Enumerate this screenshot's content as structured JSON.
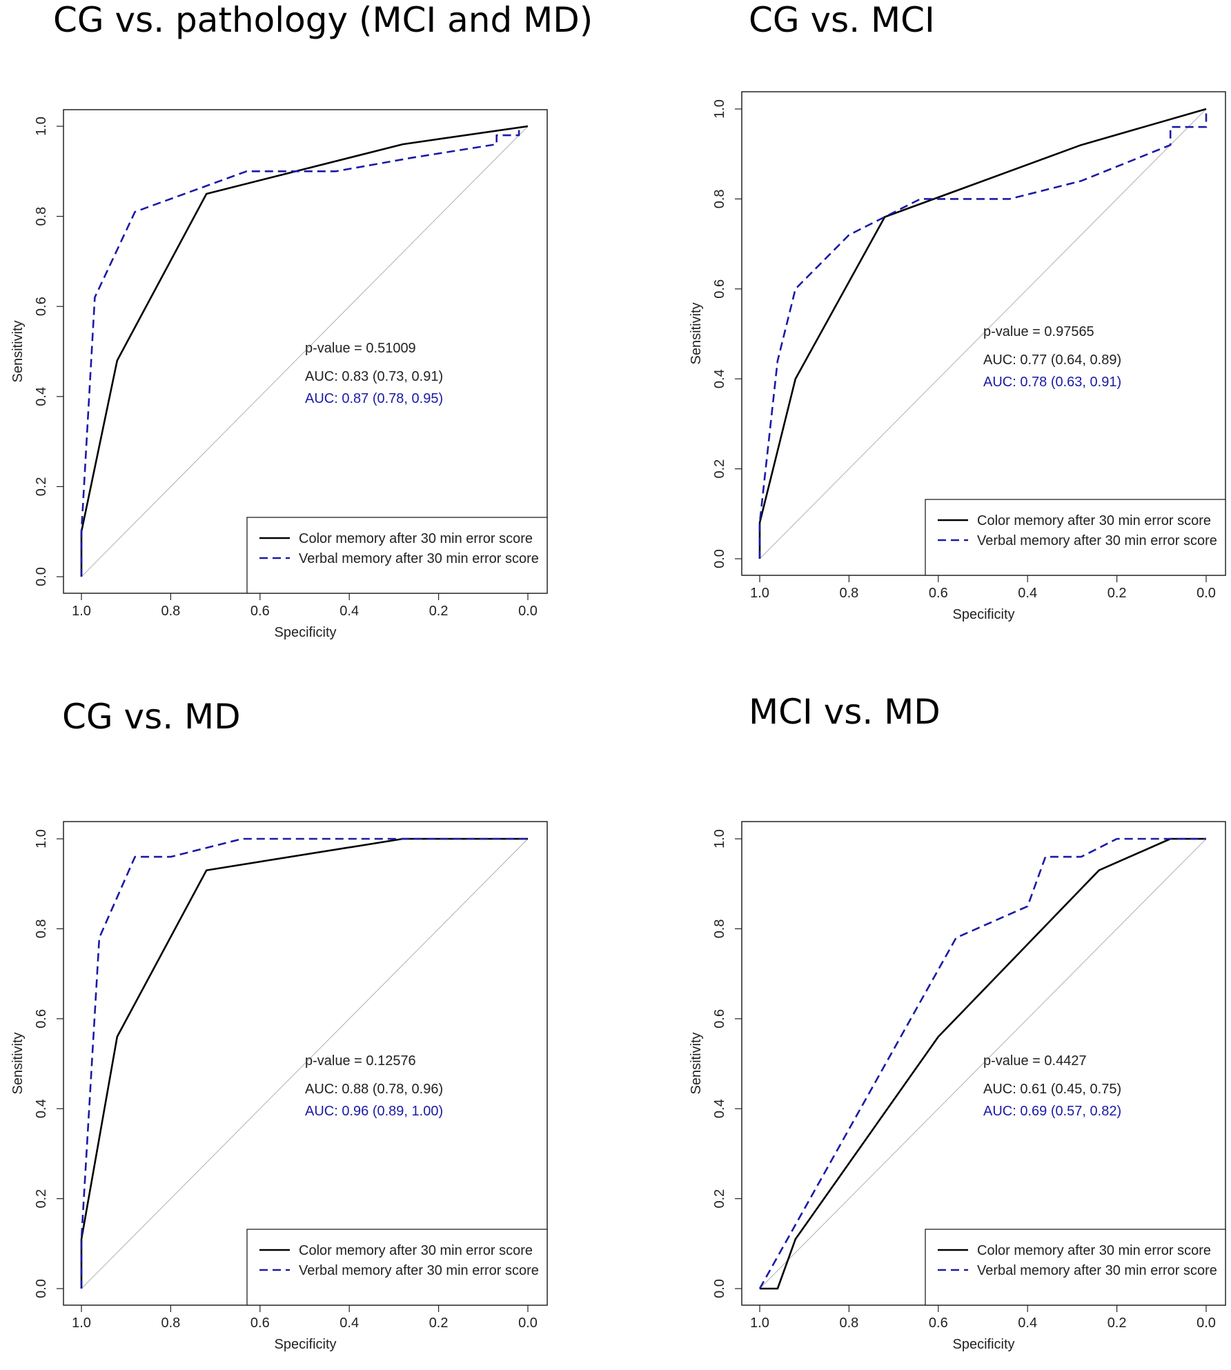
{
  "colors": {
    "color_memory": "#000000",
    "verbal_memory": "#1a1aa6",
    "reference_line": "#b0b0b0",
    "text": "#222222"
  },
  "chart_data": [
    {
      "type": "line",
      "title": "CG vs. pathology (MCI and MD)",
      "xlabel": "Specificity",
      "ylabel": "Sensitivity",
      "xlim": [
        1.0,
        0.0
      ],
      "ylim": [
        0.0,
        1.0
      ],
      "x_ticks": [
        "1.0",
        "0.8",
        "0.6",
        "0.4",
        "0.2",
        "0.0"
      ],
      "y_ticks": [
        "0.0",
        "0.2",
        "0.4",
        "0.6",
        "0.8",
        "1.0"
      ],
      "pvalue_text": "p-value = 0.51009",
      "auc_color_text": "AUC: 0.83 (0.73, 0.91)",
      "auc_verbal_text": "AUC: 0.87 (0.78, 0.95)",
      "legend_position": "bottom-right",
      "series": [
        {
          "name": "Color memory after 30 min error score",
          "style": "solid",
          "x": [
            1.0,
            1.0,
            0.92,
            0.72,
            0.28,
            0.0
          ],
          "y": [
            0.0,
            0.1,
            0.48,
            0.85,
            0.96,
            1.0
          ]
        },
        {
          "name": "Verbal memory after 30 min error score",
          "style": "dashed",
          "x": [
            1.0,
            1.0,
            0.97,
            0.88,
            0.63,
            0.43,
            0.26,
            0.07,
            0.07,
            0.02,
            0.02
          ],
          "y": [
            0.0,
            0.1,
            0.62,
            0.81,
            0.9,
            0.9,
            0.93,
            0.96,
            0.98,
            0.98,
            1.0
          ]
        }
      ]
    },
    {
      "type": "line",
      "title": "CG vs. MCI",
      "xlabel": "Specificity",
      "ylabel": "Sensitivity",
      "xlim": [
        1.0,
        0.0
      ],
      "ylim": [
        0.0,
        1.0
      ],
      "x_ticks": [
        "1.0",
        "0.8",
        "0.6",
        "0.4",
        "0.2",
        "0.0"
      ],
      "y_ticks": [
        "0.0",
        "0.2",
        "0.4",
        "0.6",
        "0.8",
        "1.0"
      ],
      "pvalue_text": "p-value = 0.97565",
      "auc_color_text": "AUC: 0.77 (0.64, 0.89)",
      "auc_verbal_text": "AUC: 0.78 (0.63, 0.91)",
      "legend_position": "bottom-right",
      "series": [
        {
          "name": "Color memory after 30 min error score",
          "style": "solid",
          "x": [
            1.0,
            1.0,
            0.92,
            0.72,
            0.28,
            0.0
          ],
          "y": [
            0.0,
            0.08,
            0.4,
            0.76,
            0.92,
            1.0
          ]
        },
        {
          "name": "Verbal memory after 30 min error score",
          "style": "dashed",
          "x": [
            1.0,
            1.0,
            0.96,
            0.92,
            0.8,
            0.64,
            0.44,
            0.28,
            0.08,
            0.08,
            0.0,
            0.0
          ],
          "y": [
            0.0,
            0.08,
            0.44,
            0.6,
            0.72,
            0.8,
            0.8,
            0.84,
            0.92,
            0.96,
            0.96,
            1.0
          ]
        }
      ]
    },
    {
      "type": "line",
      "title": "CG vs. MD",
      "xlabel": "Specificity",
      "ylabel": "Sensitivity",
      "xlim": [
        1.0,
        0.0
      ],
      "ylim": [
        0.0,
        1.0
      ],
      "x_ticks": [
        "1.0",
        "0.8",
        "0.6",
        "0.4",
        "0.2",
        "0.0"
      ],
      "y_ticks": [
        "0.0",
        "0.2",
        "0.4",
        "0.6",
        "0.8",
        "1.0"
      ],
      "pvalue_text": "p-value = 0.12576",
      "auc_color_text": "AUC: 0.88 (0.78, 0.96)",
      "auc_verbal_text": "AUC: 0.96 (0.89, 1.00)",
      "legend_position": "bottom-right",
      "series": [
        {
          "name": "Color memory after 30 min error score",
          "style": "solid",
          "x": [
            1.0,
            1.0,
            0.92,
            0.72,
            0.28,
            0.0
          ],
          "y": [
            0.0,
            0.11,
            0.56,
            0.93,
            1.0,
            1.0
          ]
        },
        {
          "name": "Verbal memory after 30 min error score",
          "style": "dashed",
          "x": [
            1.0,
            1.0,
            0.96,
            0.88,
            0.8,
            0.64,
            0.28,
            0.0
          ],
          "y": [
            0.0,
            0.11,
            0.78,
            0.96,
            0.96,
            1.0,
            1.0,
            1.0
          ]
        }
      ]
    },
    {
      "type": "line",
      "title": "MCI vs. MD",
      "xlabel": "Specificity",
      "ylabel": "Sensitivity",
      "xlim": [
        1.0,
        0.0
      ],
      "ylim": [
        0.0,
        1.0
      ],
      "x_ticks": [
        "1.0",
        "0.8",
        "0.6",
        "0.4",
        "0.2",
        "0.0"
      ],
      "y_ticks": [
        "0.0",
        "0.2",
        "0.4",
        "0.6",
        "0.8",
        "1.0"
      ],
      "pvalue_text": "p-value = 0.4427",
      "auc_color_text": "AUC: 0.61 (0.45, 0.75)",
      "auc_verbal_text": "AUC: 0.69 (0.57, 0.82)",
      "legend_position": "bottom-right",
      "series": [
        {
          "name": "Color memory after 30 min error score",
          "style": "solid",
          "x": [
            1.0,
            0.96,
            0.92,
            0.6,
            0.24,
            0.08,
            0.0
          ],
          "y": [
            0.0,
            0.0,
            0.11,
            0.56,
            0.93,
            1.0,
            1.0
          ]
        },
        {
          "name": "Verbal memory after 30 min error score",
          "style": "dashed",
          "x": [
            1.0,
            0.56,
            0.4,
            0.36,
            0.28,
            0.2,
            0.0
          ],
          "y": [
            0.0,
            0.78,
            0.85,
            0.96,
            0.96,
            1.0,
            1.0
          ]
        }
      ]
    }
  ]
}
